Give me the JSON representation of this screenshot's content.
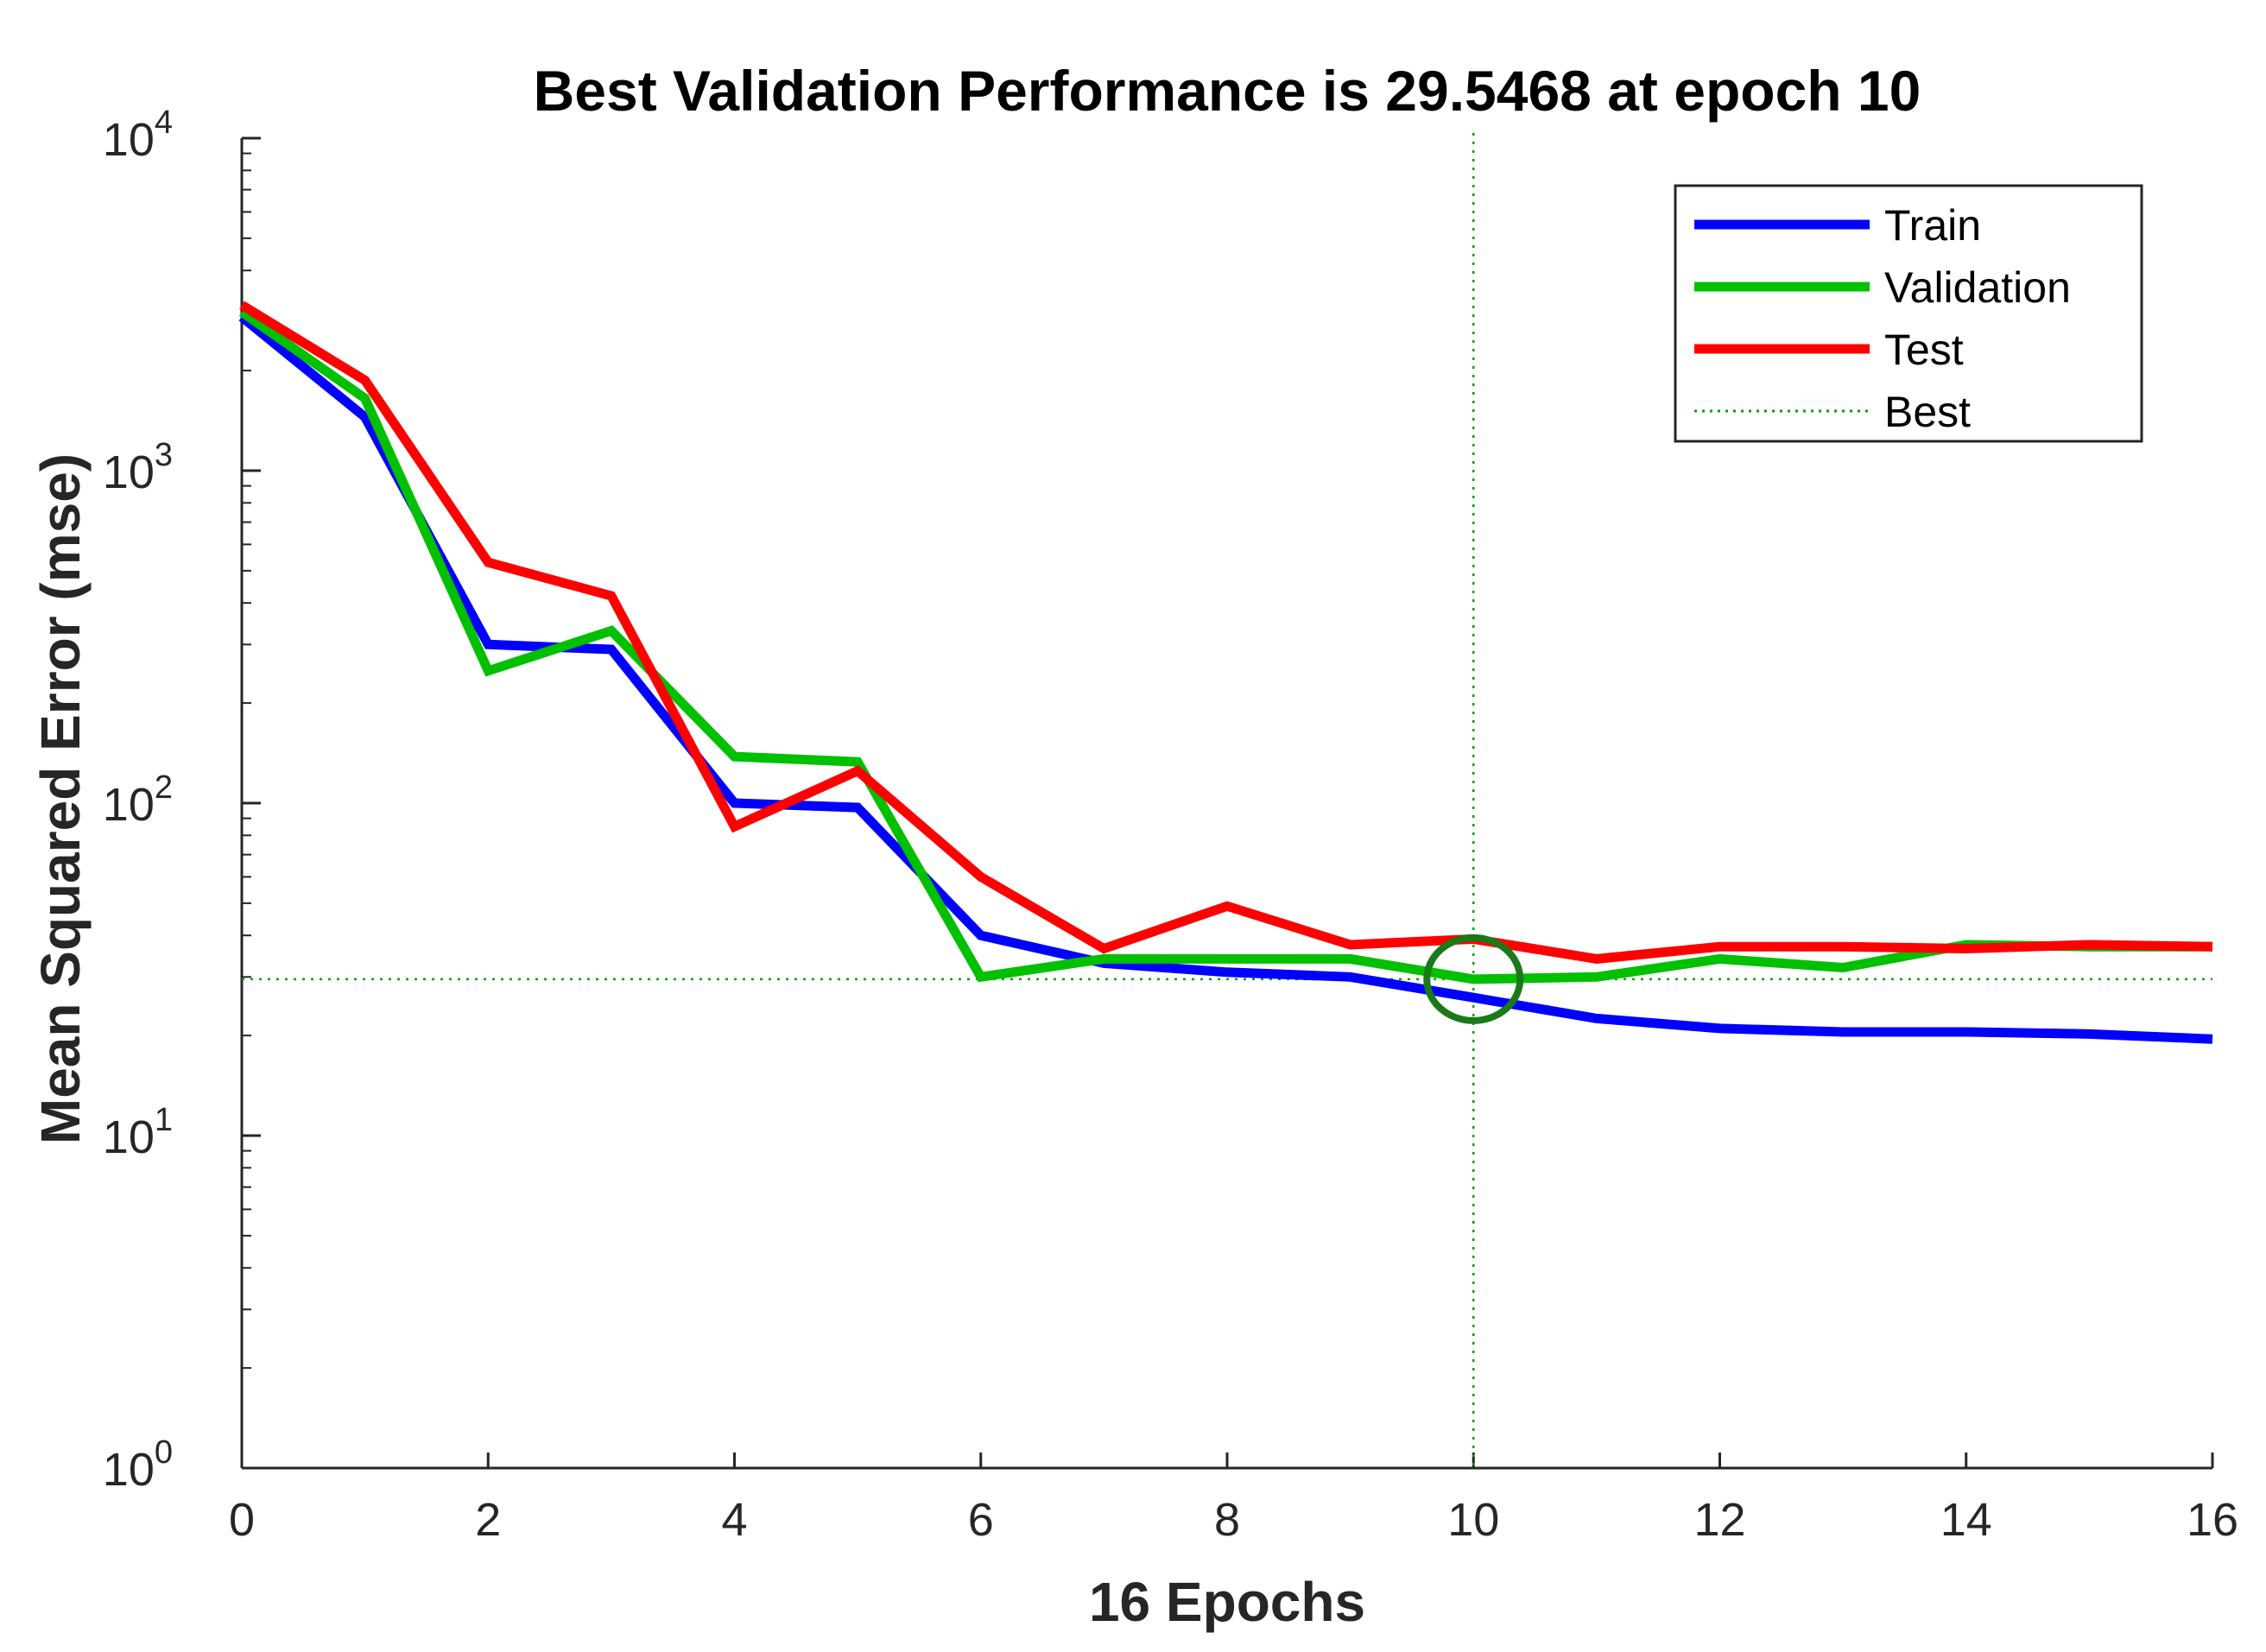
{
  "chart_data": {
    "type": "line",
    "title": "Best Validation Performance is 29.5468 at epoch 10",
    "xlabel": "16 Epochs",
    "ylabel": "Mean Squared Error  (mse)",
    "xlim": [
      0,
      16
    ],
    "ylim": [
      1,
      10000
    ],
    "yscale": "log",
    "x_ticks": [
      "0",
      "2",
      "4",
      "6",
      "8",
      "10",
      "12",
      "14",
      "16"
    ],
    "y_ticks": [
      {
        "base": "10",
        "exp": "0"
      },
      {
        "base": "10",
        "exp": "1"
      },
      {
        "base": "10",
        "exp": "2"
      },
      {
        "base": "10",
        "exp": "3"
      },
      {
        "base": "10",
        "exp": "4"
      }
    ],
    "x": [
      0,
      1,
      2,
      3,
      4,
      5,
      6,
      7,
      8,
      9,
      10,
      11,
      12,
      13,
      14,
      15,
      16
    ],
    "series": [
      {
        "name": "Train",
        "color": "#0000ff",
        "values": [
          2900,
          1450,
          300,
          290,
          100,
          97,
          40,
          33,
          31,
          30,
          26,
          22.5,
          21,
          20.5,
          20.5,
          20.2,
          19.5
        ]
      },
      {
        "name": "Validation",
        "color": "#00c000",
        "values": [
          3000,
          1650,
          250,
          330,
          138,
          133,
          30,
          34,
          34,
          34,
          29.5468,
          30,
          34,
          32,
          37.5,
          37,
          37
        ]
      },
      {
        "name": "Test",
        "color": "#ff0000",
        "values": [
          3150,
          1870,
          530,
          420,
          85,
          125,
          60,
          36.5,
          49,
          37.5,
          39,
          34,
          37,
          37,
          36.5,
          37.5,
          37
        ]
      }
    ],
    "best": {
      "name": "Best",
      "epoch": 10,
      "value": 29.5468,
      "color": "#00a000"
    },
    "legend": {
      "placement": "top-right",
      "entries": [
        "Train",
        "Validation",
        "Test",
        "Best"
      ]
    },
    "grid": false
  }
}
